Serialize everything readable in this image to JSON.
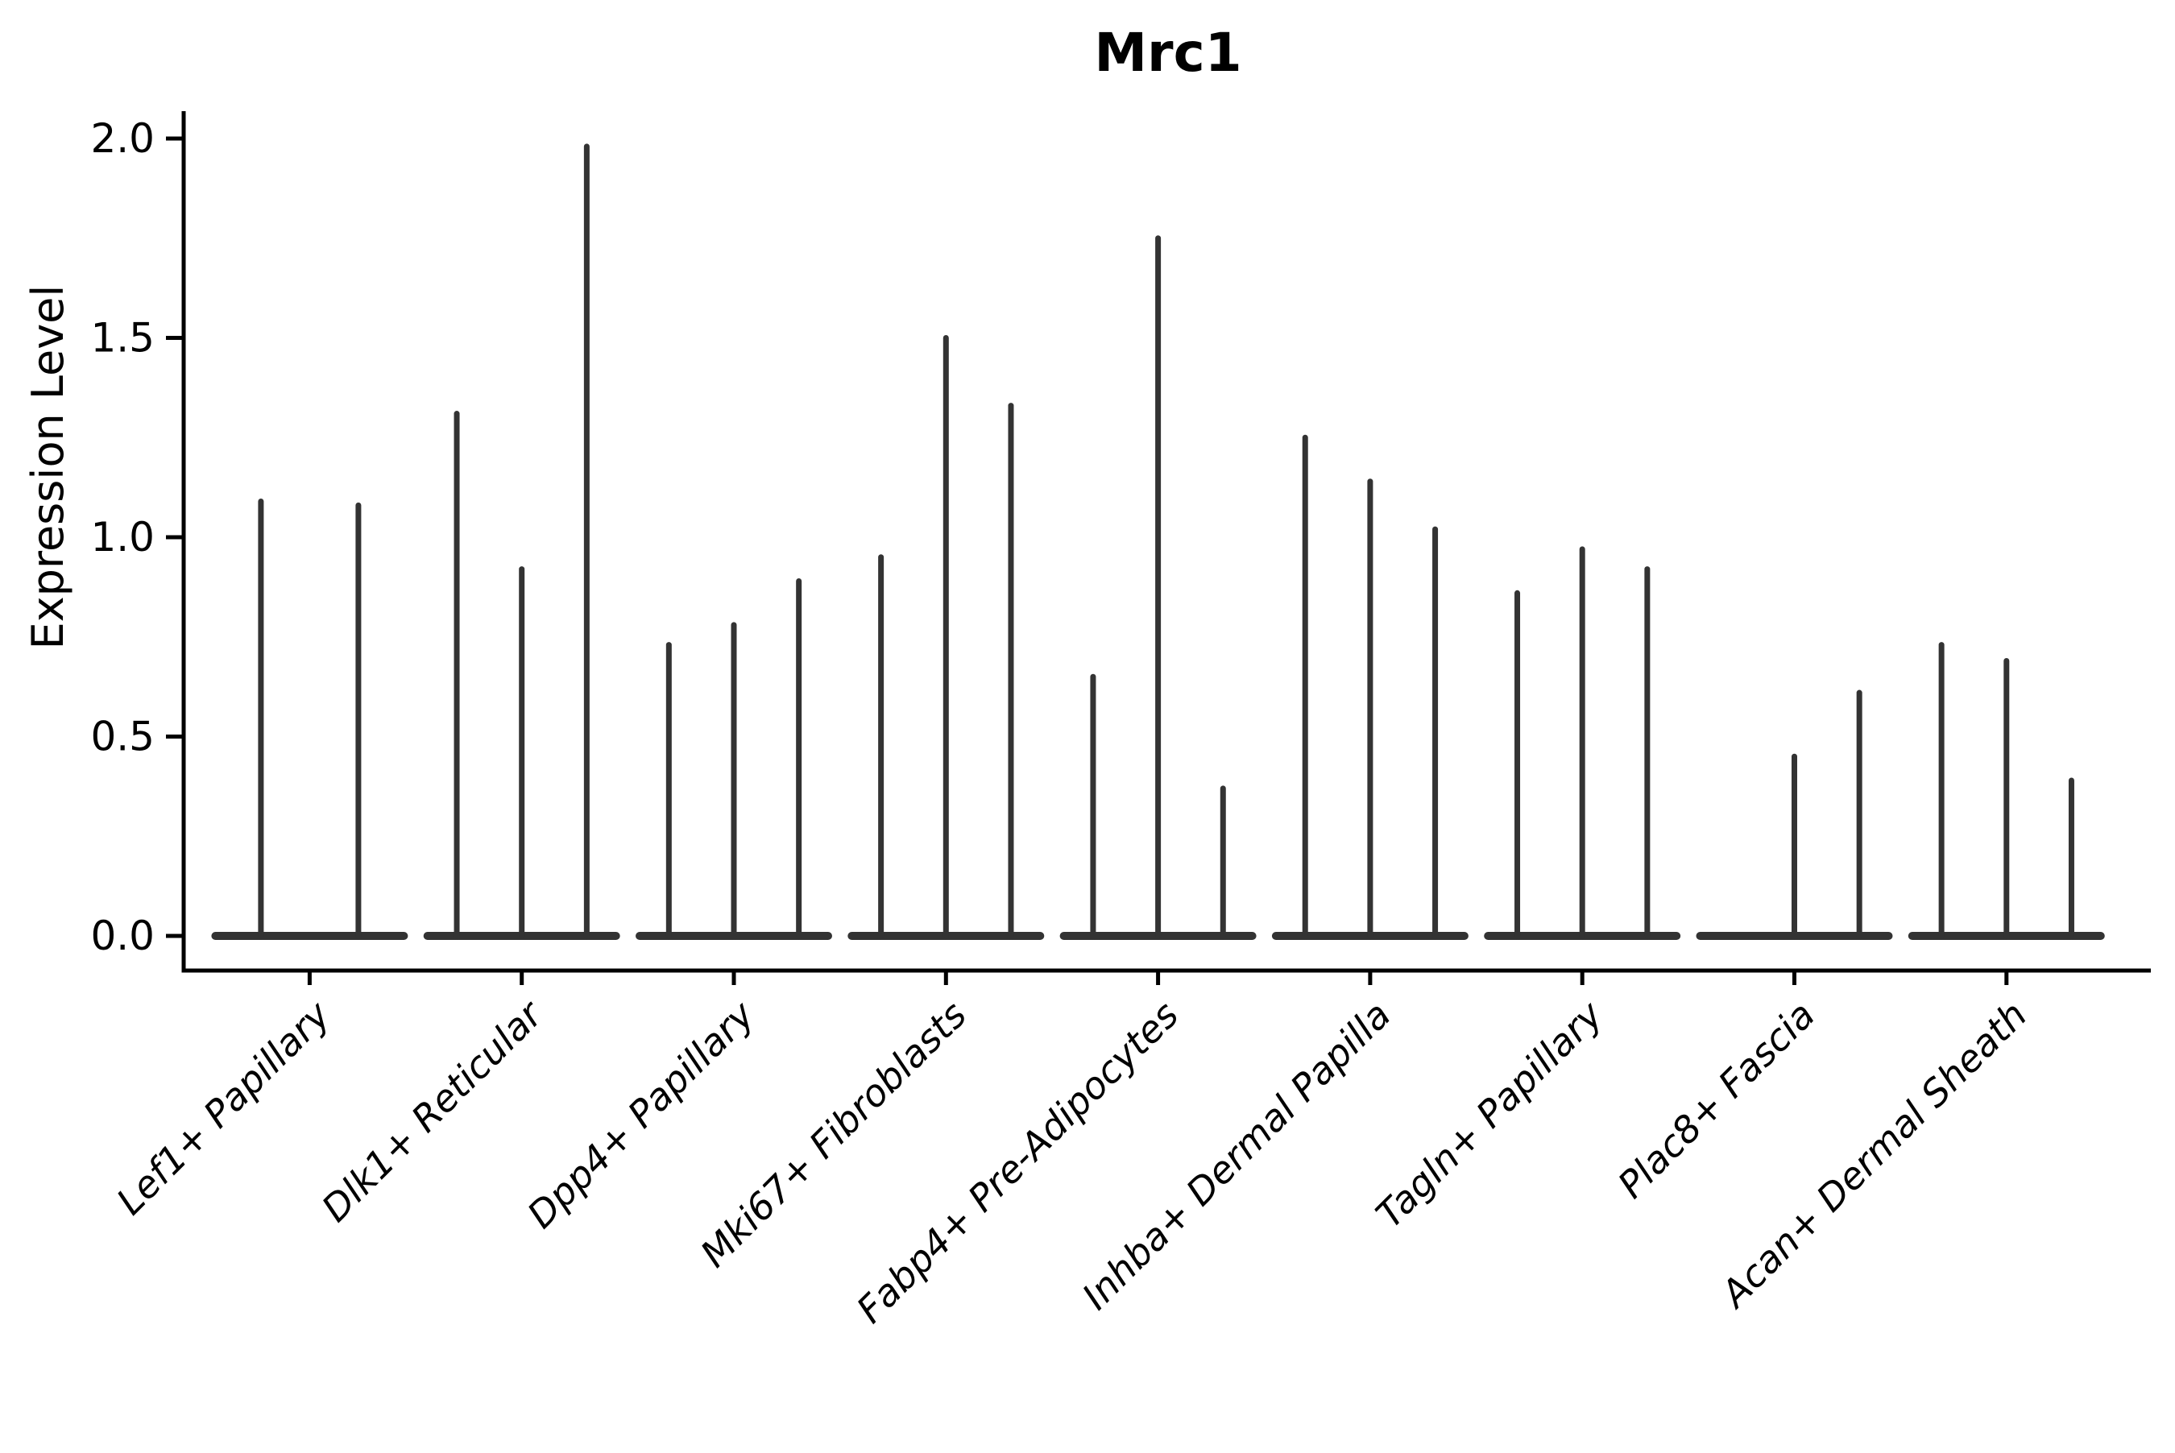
{
  "chart_data": {
    "type": "violin",
    "title": "Mrc1",
    "ylabel": "Expression Level",
    "xlabel": "",
    "ylim": [
      0.0,
      2.05
    ],
    "yticks": [
      {
        "label": "0.0",
        "value": 0.0
      },
      {
        "label": "0.5",
        "value": 0.5
      },
      {
        "label": "1.0",
        "value": 1.0
      },
      {
        "label": "1.5",
        "value": 1.5
      },
      {
        "label": "2.0",
        "value": 2.0
      }
    ],
    "grid": false,
    "legend": "none",
    "violin_style": "zero-inflated: wide flat density lens at expression 0 with a thin spike rising to the maximum expression value; 2-3 violins drawn side by side per category",
    "violin_color": "#333333",
    "axis_color": "#000000",
    "categories": [
      "Lef1+ Papillary",
      "Dlk1+ Reticular",
      "Dpp4+ Papillary",
      "Mki67+ Fibroblasts",
      "Fabp4+ Pre-Adipocytes",
      "Inhba+ Dermal Papilla",
      "Tagln+ Papillary",
      "Plac8+ Fascia",
      "Acan+ Dermal Sheath"
    ],
    "series": [
      {
        "category": "Lef1+ Papillary",
        "violin_max_values": [
          1.09,
          1.08
        ]
      },
      {
        "category": "Dlk1+ Reticular",
        "violin_max_values": [
          1.31,
          0.92,
          1.98
        ]
      },
      {
        "category": "Dpp4+ Papillary",
        "violin_max_values": [
          0.73,
          0.78,
          0.89
        ]
      },
      {
        "category": "Mki67+ Fibroblasts",
        "violin_max_values": [
          0.95,
          1.5,
          1.33
        ]
      },
      {
        "category": "Fabp4+ Pre-Adipocytes",
        "violin_max_values": [
          0.65,
          1.75,
          0.37
        ]
      },
      {
        "category": "Inhba+ Dermal Papilla",
        "violin_max_values": [
          1.25,
          1.14,
          1.02
        ]
      },
      {
        "category": "Tagln+ Papillary",
        "violin_max_values": [
          0.86,
          0.97,
          0.92
        ]
      },
      {
        "category": "Plac8+ Fascia",
        "violin_max_values": [
          0.0,
          0.45,
          0.61
        ]
      },
      {
        "category": "Acan+ Dermal Sheath",
        "violin_max_values": [
          0.73,
          0.69,
          0.39
        ]
      }
    ]
  }
}
